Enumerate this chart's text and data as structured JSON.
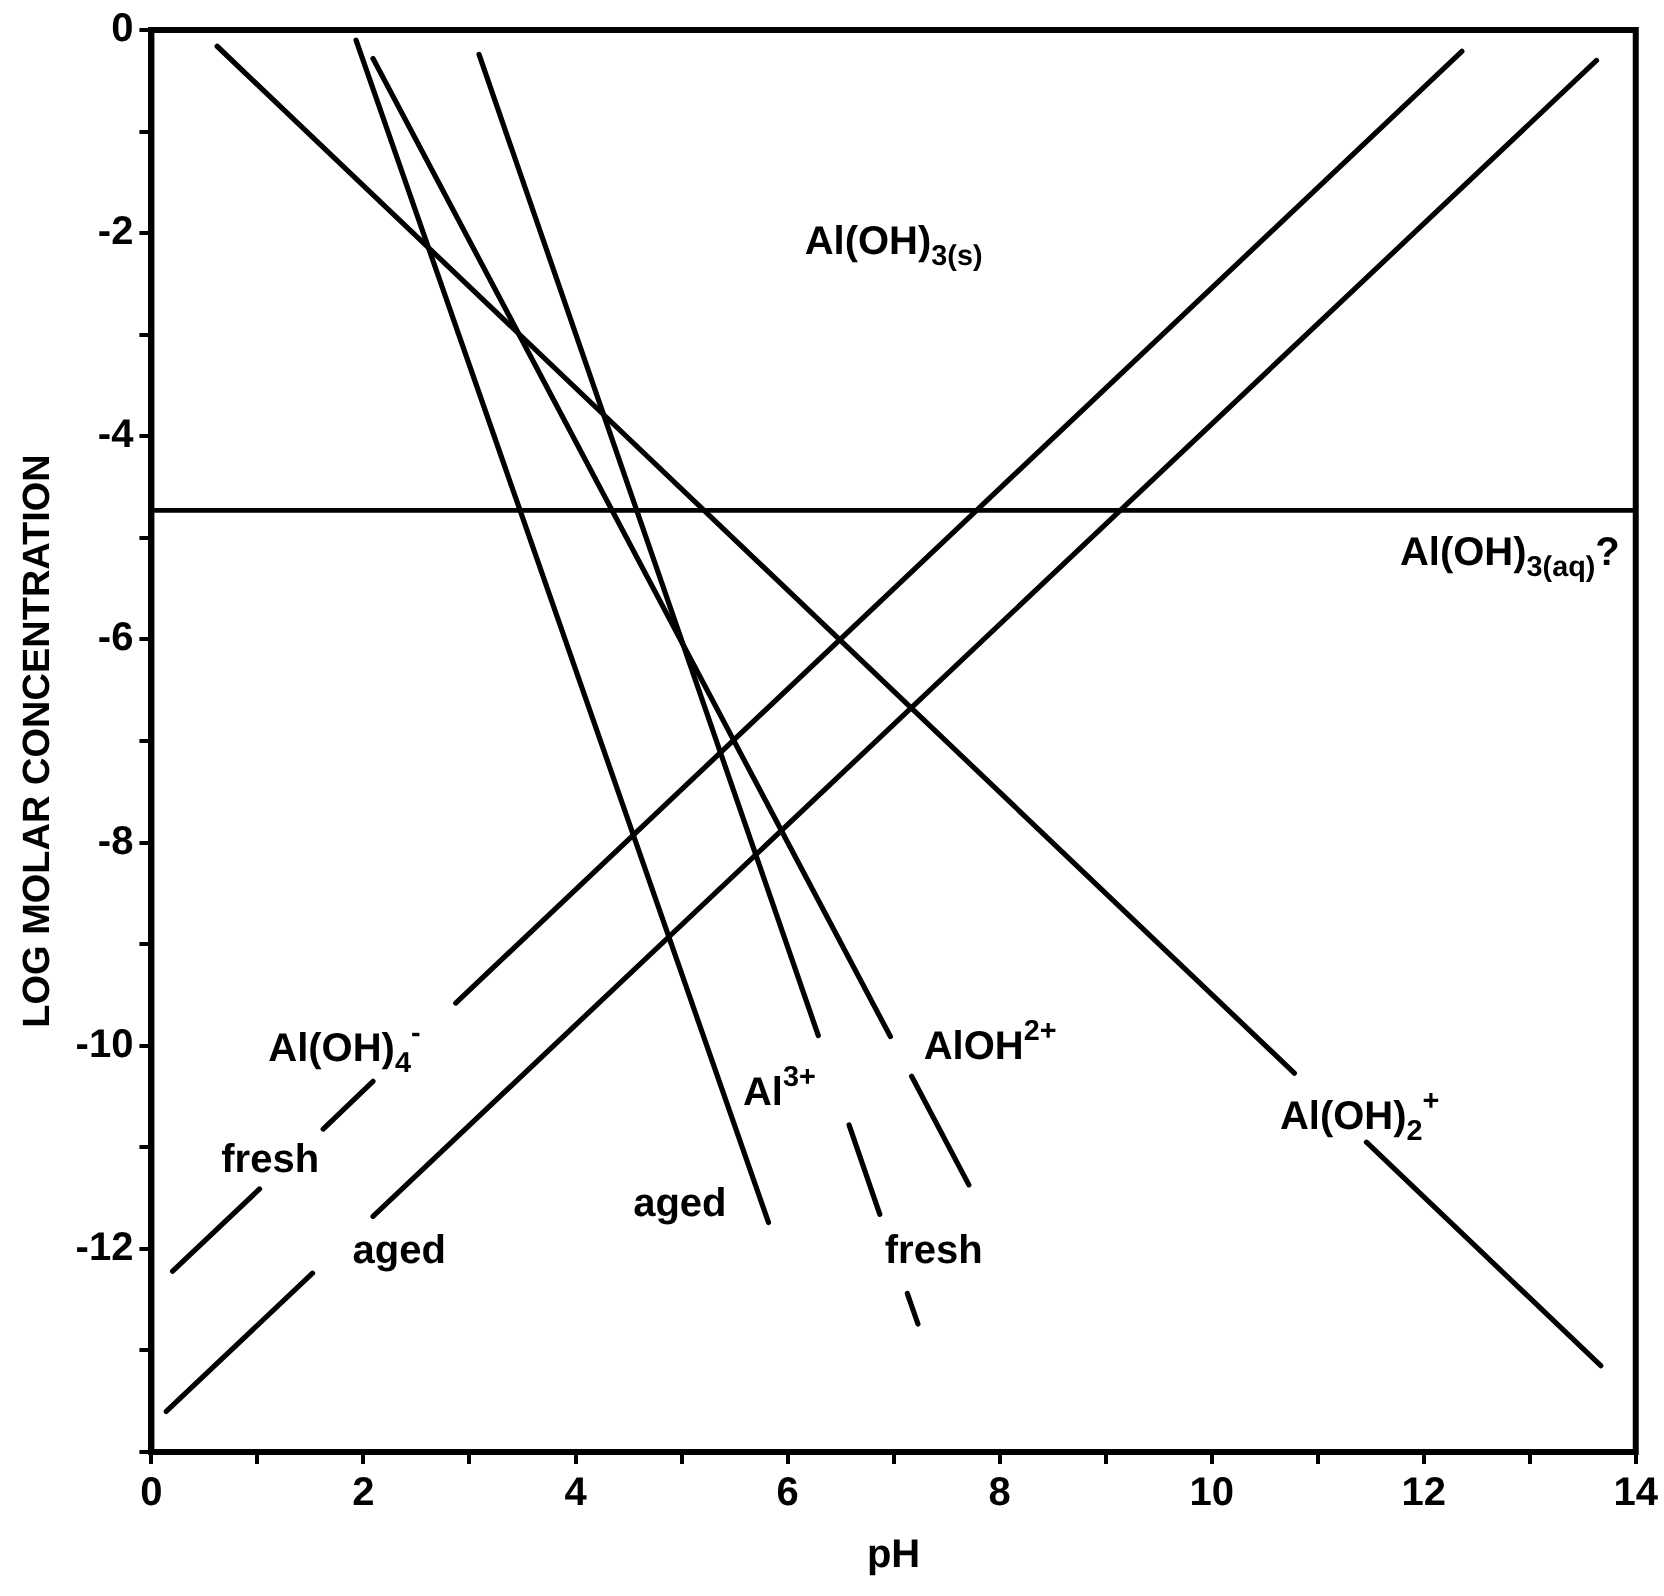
{
  "chart_data": {
    "type": "line",
    "xlabel": "pH",
    "ylabel": "LOG MOLAR CONCENTRATION",
    "xlim": [
      0,
      14
    ],
    "ylim": [
      -14,
      0
    ],
    "xticks": [
      0,
      {
        "value": 1,
        "label": null
      },
      2,
      {
        "value": 3,
        "label": null
      },
      4,
      {
        "value": 5,
        "label": null
      },
      6,
      {
        "value": 7,
        "label": null
      },
      8,
      {
        "value": 9,
        "label": null
      },
      10,
      {
        "value": 11,
        "label": null
      },
      12,
      {
        "value": 13,
        "label": null
      },
      14
    ],
    "yticks": [
      0,
      {
        "value": -1,
        "label": null
      },
      -2,
      {
        "value": -3,
        "label": null
      },
      -4,
      {
        "value": -5,
        "label": null
      },
      -6,
      {
        "value": -7,
        "label": null
      },
      -8,
      {
        "value": -9,
        "label": null
      },
      -10,
      {
        "value": -11,
        "label": null
      },
      -12,
      {
        "value": -13,
        "label": null
      },
      {
        "value": -14,
        "label": null
      }
    ],
    "grid": false,
    "legend": false,
    "marker": "none",
    "line_style": "solid",
    "series": [
      {
        "color": "#000000",
        "x": [
          0.62,
          10.78,
          11.1,
          11.46,
          13.67
        ],
        "values": [
          -0.16,
          -10.27,
          null,
          -10.95,
          -13.15
        ]
      },
      {
        "color": "#000000",
        "x": [
          0.2,
          1.02,
          1.3,
          1.62,
          2.09,
          2.5,
          2.87,
          12.36
        ],
        "values": [
          -12.22,
          -11.41,
          null,
          -10.82,
          -10.35,
          null,
          -9.58,
          -0.21
        ]
      },
      {
        "color": "#000000",
        "x": [
          0.14,
          1.52,
          1.8,
          2.09,
          13.63
        ],
        "values": [
          -13.6,
          -12.24,
          null,
          -11.68,
          -0.3
        ]
      },
      {
        "color": "#000000",
        "x": [
          1.93,
          5.82
        ],
        "values": [
          -0.1,
          -11.74
        ]
      },
      {
        "color": "#000000",
        "x": [
          3.09,
          6.29,
          6.45,
          6.58,
          6.87,
          7.0,
          7.13,
          7.23
        ],
        "values": [
          -0.24,
          -9.9,
          null,
          -10.78,
          -11.66,
          null,
          -12.44,
          -12.74
        ]
      },
      {
        "color": "#000000",
        "x": [
          2.09,
          6.97,
          7.07,
          7.17,
          7.71
        ],
        "values": [
          -0.28,
          -9.91,
          null,
          -10.3,
          -11.37
        ]
      }
    ],
    "ref_lines": [
      {
        "axis": "y",
        "value": -4.73,
        "label": "Al(OH)$_{3(aq)}$?"
      }
    ],
    "annotations": [
      "Al(OH)$_{3(s)}$",
      "Al(OH)$_{4}$$^{-}$",
      "fresh",
      "aged",
      "aged",
      "Al$^{3+}$",
      "AlOH$^{2+}$",
      "fresh",
      "Al(OH)$_{2}$$^{+}$"
    ]
  }
}
